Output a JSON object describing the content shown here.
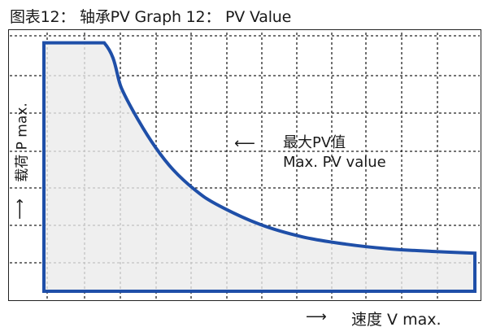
{
  "title": "图表12：  轴承PV  Graph 12：  PV Value",
  "chart_data": {
    "type": "area",
    "x_axis_label": "速度 V max.",
    "y_axis_label": "载荷 P max.",
    "annotation": {
      "line1": "最大PV值",
      "line2": "Max. PV value"
    },
    "grid": true,
    "grid_style": "dashed",
    "xlim": [
      0,
      10
    ],
    "ylim": [
      0,
      7
    ],
    "x": [
      0,
      1.4,
      1.8,
      2.2,
      2.6,
      3.0,
      3.5,
      4.0,
      5.0,
      6.0,
      7.0,
      8.0,
      9.0,
      10.0
    ],
    "y": [
      6.85,
      6.85,
      5.6,
      4.7,
      3.95,
      3.35,
      2.8,
      2.4,
      1.85,
      1.5,
      1.3,
      1.17,
      1.1,
      1.05
    ],
    "fill_color": "#ebebeb",
    "line_color": "#1f4fa8"
  }
}
